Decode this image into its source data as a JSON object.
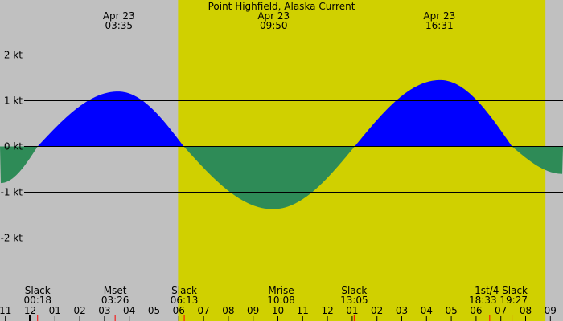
{
  "chart_data": {
    "type": "area",
    "title": "Point Highfield, Alaska Current",
    "xlabel": "",
    "ylabel": "",
    "y_unit": "kt",
    "ylim": [
      -3.2,
      3.2
    ],
    "grid": true,
    "yticks": [
      {
        "value": 2,
        "label": "2 kt"
      },
      {
        "value": 1,
        "label": "1 kt"
      },
      {
        "value": 0,
        "label": "0 kt"
      },
      {
        "value": -1,
        "label": "-1 kt"
      },
      {
        "value": -2,
        "label": "-2 kt"
      }
    ],
    "xticks": [
      "11",
      "12",
      "01",
      "02",
      "03",
      "04",
      "05",
      "06",
      "07",
      "08",
      "09",
      "10",
      "11",
      "12",
      "01",
      "02",
      "03",
      "04",
      "05",
      "06",
      "07",
      "08",
      "09"
    ],
    "daylight": {
      "start_hour": 5.97,
      "end_hour": 20.8
    },
    "peak_labels": [
      {
        "date": "Apr 23",
        "time": "03:35",
        "hour": 3.58
      },
      {
        "date": "Apr 23",
        "time": "09:50",
        "hour": 9.83
      },
      {
        "date": "Apr 23",
        "time": "16:31",
        "hour": 16.52
      }
    ],
    "events": [
      {
        "name": "Slack",
        "time": "00:18",
        "hour": 0.3
      },
      {
        "name": "Mset",
        "time": "03:26",
        "hour": 3.43
      },
      {
        "name": "Slack",
        "time": "06:13",
        "hour": 6.22
      },
      {
        "name": "Mrise",
        "time": "10:08",
        "hour": 10.13
      },
      {
        "name": "Slack",
        "time": "13:05",
        "hour": 13.08
      },
      {
        "name": "1st/4",
        "time": "18:33",
        "hour": 18.55
      },
      {
        "name": "Slack",
        "time": "19:27",
        "hour": 19.45
      }
    ],
    "series": [
      {
        "name": "Current",
        "x_hours": [
          -1.2,
          0.3,
          3.55,
          6.2,
          9.8,
          13.1,
          16.55,
          19.45,
          21.5
        ],
        "values": [
          -0.8,
          0.0,
          1.2,
          0.0,
          -1.37,
          0.0,
          1.45,
          0.0,
          -0.6
        ]
      }
    ],
    "colors": {
      "flood": "#0000ff",
      "ebb": "#2e8b57",
      "day": "#d0d000",
      "night": "#c0c0c0",
      "event_tick": "#ff0000"
    }
  }
}
